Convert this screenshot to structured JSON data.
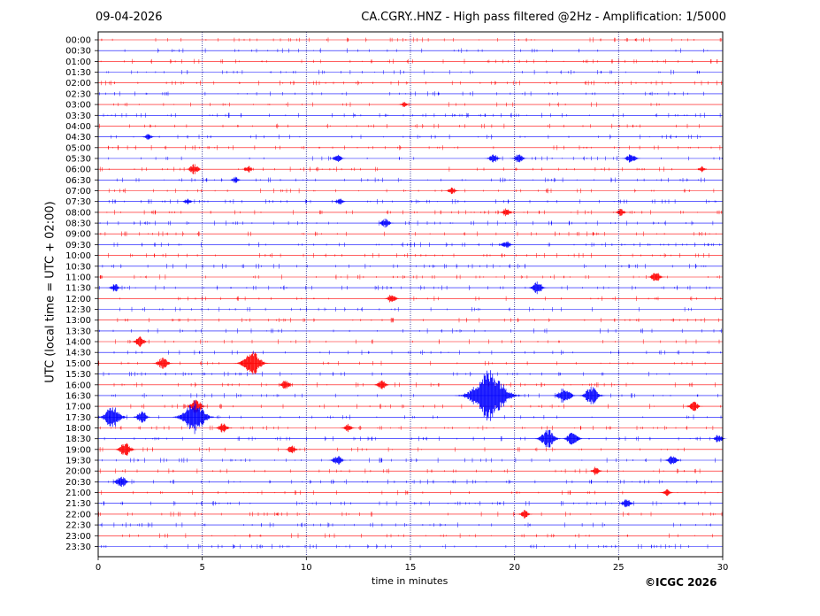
{
  "header": {
    "date": "09-04-2026",
    "title": "CA.CGRY..HNZ - High pass filtered @2Hz - Amplification: 1/5000"
  },
  "footer": {
    "credit": "©ICGC 2026"
  },
  "colors": {
    "trace_a": "#ff0000",
    "trace_b": "#0000ff",
    "grid": "#000080",
    "frame": "#000000"
  },
  "chart_data": {
    "type": "line",
    "title": "CA.CGRY..HNZ - High pass filtered @2Hz - Amplification: 1/5000",
    "xlabel": "time in minutes",
    "ylabel": "UTC (local time = UTC + 02:00)",
    "xlim": [
      0,
      30
    ],
    "x_ticks": [
      "0",
      "5",
      "10",
      "15",
      "20",
      "25",
      "30"
    ],
    "grid": "vertical dotted lines at 5-minute intervals",
    "row_labels": [
      "00:00",
      "00:30",
      "01:00",
      "01:30",
      "02:00",
      "02:30",
      "03:00",
      "03:30",
      "04:00",
      "04:30",
      "05:00",
      "05:30",
      "06:00",
      "06:30",
      "07:00",
      "07:30",
      "08:00",
      "08:30",
      "09:00",
      "09:30",
      "10:00",
      "10:30",
      "11:00",
      "11:30",
      "12:00",
      "12:30",
      "13:00",
      "13:30",
      "14:00",
      "14:30",
      "15:00",
      "15:30",
      "16:00",
      "16:30",
      "17:00",
      "17:30",
      "18:00",
      "18:30",
      "19:00",
      "19:30",
      "20:00",
      "20:30",
      "21:00",
      "21:30",
      "22:00",
      "22:30",
      "23:00",
      "23:30"
    ],
    "trace_colors": [
      "red",
      "blue"
    ],
    "events": [
      {
        "row": "03:00",
        "minute": 14.7,
        "amplitude": 0.25
      },
      {
        "row": "04:30",
        "minute": 2.4,
        "amplitude": 0.3
      },
      {
        "row": "05:30",
        "minute": 11.5,
        "amplitude": 0.4
      },
      {
        "row": "05:30",
        "minute": 19.0,
        "amplitude": 0.45
      },
      {
        "row": "05:30",
        "minute": 20.2,
        "amplitude": 0.45
      },
      {
        "row": "05:30",
        "minute": 25.6,
        "amplitude": 0.5
      },
      {
        "row": "06:00",
        "minute": 4.6,
        "amplitude": 0.5
      },
      {
        "row": "06:00",
        "minute": 7.2,
        "amplitude": 0.35
      },
      {
        "row": "06:00",
        "minute": 29.0,
        "amplitude": 0.3
      },
      {
        "row": "06:30",
        "minute": 6.6,
        "amplitude": 0.3
      },
      {
        "row": "07:00",
        "minute": 17.0,
        "amplitude": 0.35
      },
      {
        "row": "07:30",
        "minute": 4.3,
        "amplitude": 0.3
      },
      {
        "row": "07:30",
        "minute": 11.6,
        "amplitude": 0.35
      },
      {
        "row": "08:00",
        "minute": 19.6,
        "amplitude": 0.4
      },
      {
        "row": "08:00",
        "minute": 25.1,
        "amplitude": 0.35
      },
      {
        "row": "08:30",
        "minute": 13.8,
        "amplitude": 0.45
      },
      {
        "row": "09:30",
        "minute": 19.6,
        "amplitude": 0.4
      },
      {
        "row": "11:00",
        "minute": 26.8,
        "amplitude": 0.5
      },
      {
        "row": "11:30",
        "minute": 0.8,
        "amplitude": 0.4
      },
      {
        "row": "11:30",
        "minute": 21.1,
        "amplitude": 0.6
      },
      {
        "row": "12:00",
        "minute": 14.1,
        "amplitude": 0.45
      },
      {
        "row": "14:00",
        "minute": 2.0,
        "amplitude": 0.5
      },
      {
        "row": "15:00",
        "minute": 3.1,
        "amplitude": 0.6
      },
      {
        "row": "15:00",
        "minute": 7.4,
        "amplitude": 1.2
      },
      {
        "row": "16:00",
        "minute": 9.0,
        "amplitude": 0.45
      },
      {
        "row": "16:00",
        "minute": 13.6,
        "amplitude": 0.5
      },
      {
        "row": "16:30",
        "minute": 18.8,
        "amplitude": 2.5
      },
      {
        "row": "16:30",
        "minute": 22.4,
        "amplitude": 0.8
      },
      {
        "row": "16:30",
        "minute": 23.7,
        "amplitude": 0.9
      },
      {
        "row": "17:00",
        "minute": 4.7,
        "amplitude": 0.7
      },
      {
        "row": "17:00",
        "minute": 28.6,
        "amplitude": 0.5
      },
      {
        "row": "17:30",
        "minute": 0.7,
        "amplitude": 1.1
      },
      {
        "row": "17:30",
        "minute": 4.6,
        "amplitude": 1.6
      },
      {
        "row": "17:30",
        "minute": 2.1,
        "amplitude": 0.6
      },
      {
        "row": "18:00",
        "minute": 6.0,
        "amplitude": 0.5
      },
      {
        "row": "18:00",
        "minute": 12.0,
        "amplitude": 0.4
      },
      {
        "row": "18:30",
        "minute": 21.6,
        "amplitude": 0.9
      },
      {
        "row": "18:30",
        "minute": 22.8,
        "amplitude": 0.7
      },
      {
        "row": "18:30",
        "minute": 29.8,
        "amplitude": 0.4
      },
      {
        "row": "19:00",
        "minute": 1.3,
        "amplitude": 0.7
      },
      {
        "row": "19:00",
        "minute": 9.3,
        "amplitude": 0.4
      },
      {
        "row": "19:30",
        "minute": 11.5,
        "amplitude": 0.5
      },
      {
        "row": "19:30",
        "minute": 27.6,
        "amplitude": 0.5
      },
      {
        "row": "20:00",
        "minute": 23.9,
        "amplitude": 0.4
      },
      {
        "row": "20:30",
        "minute": 1.1,
        "amplitude": 0.6
      },
      {
        "row": "21:00",
        "minute": 27.3,
        "amplitude": 0.35
      },
      {
        "row": "21:30",
        "minute": 25.4,
        "amplitude": 0.45
      },
      {
        "row": "22:00",
        "minute": 20.5,
        "amplitude": 0.4
      }
    ]
  }
}
